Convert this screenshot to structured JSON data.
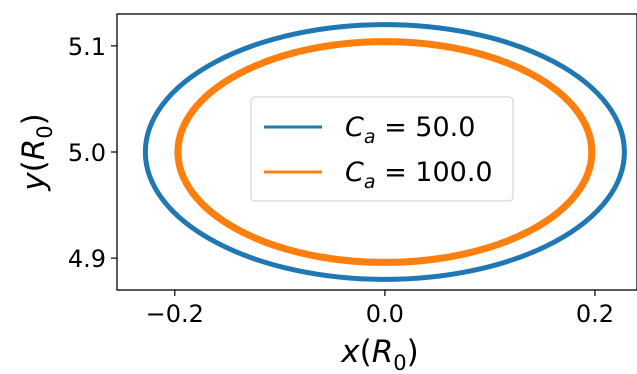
{
  "chart_data": {
    "type": "line",
    "title": "",
    "xlabel": "x(R_0)",
    "ylabel": "y(R_0)",
    "xlim": [
      -0.255,
      0.24
    ],
    "ylim": [
      4.87,
      5.13
    ],
    "xticks": [
      {
        "value": -0.2,
        "label": "−0.2"
      },
      {
        "value": 0.0,
        "label": "0.0"
      },
      {
        "value": 0.2,
        "label": "0.2"
      }
    ],
    "yticks": [
      {
        "value": 4.9,
        "label": "4.9"
      },
      {
        "value": 5.0,
        "label": "5.0"
      },
      {
        "value": 5.1,
        "label": "5.1"
      }
    ],
    "grid": false,
    "legend": {
      "position": "center"
    },
    "series": [
      {
        "name": "C_a = 50.0",
        "name_base": "C",
        "name_sub": "a",
        "name_rest": " = 50.0",
        "color": "#1f77b4",
        "shape": "ellipse",
        "center": [
          0.0,
          5.0
        ],
        "semi_axis_x": 0.228,
        "semi_axis_y": 0.12
      },
      {
        "name": "C_a = 100.0",
        "name_base": "C",
        "name_sub": "a",
        "name_rest": " = 100.0",
        "color": "#ff7f0e",
        "shape": "ellipse",
        "center": [
          0.0,
          5.0
        ],
        "semi_axis_x": 0.197,
        "semi_axis_y": 0.104
      }
    ]
  }
}
